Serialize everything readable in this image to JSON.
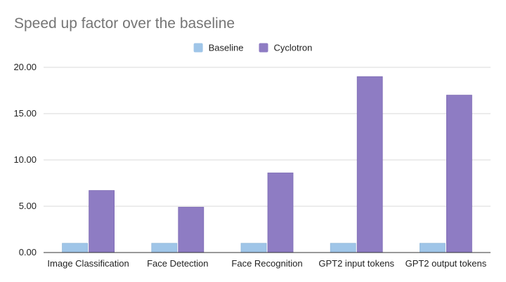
{
  "chart_data": {
    "type": "bar",
    "title": "Speed up factor over the baseline",
    "xlabel": "",
    "ylabel": "",
    "categories": [
      "Image Classification",
      "Face Detection",
      "Face Recognition",
      "GPT2 input tokens",
      "GPT2 output tokens"
    ],
    "series": [
      {
        "name": "Baseline",
        "color": "#9fc5e8",
        "values": [
          1,
          1,
          1,
          1,
          1
        ]
      },
      {
        "name": "Cyclotron",
        "color": "#8e7cc3",
        "values": [
          6.7,
          4.9,
          8.6,
          19.0,
          17.0
        ]
      }
    ],
    "ylim": [
      0,
      20
    ],
    "yticks": [
      "0.00",
      "5.00",
      "10.00",
      "15.00",
      "20.00"
    ],
    "grid": true,
    "legend_position": "top-center"
  }
}
